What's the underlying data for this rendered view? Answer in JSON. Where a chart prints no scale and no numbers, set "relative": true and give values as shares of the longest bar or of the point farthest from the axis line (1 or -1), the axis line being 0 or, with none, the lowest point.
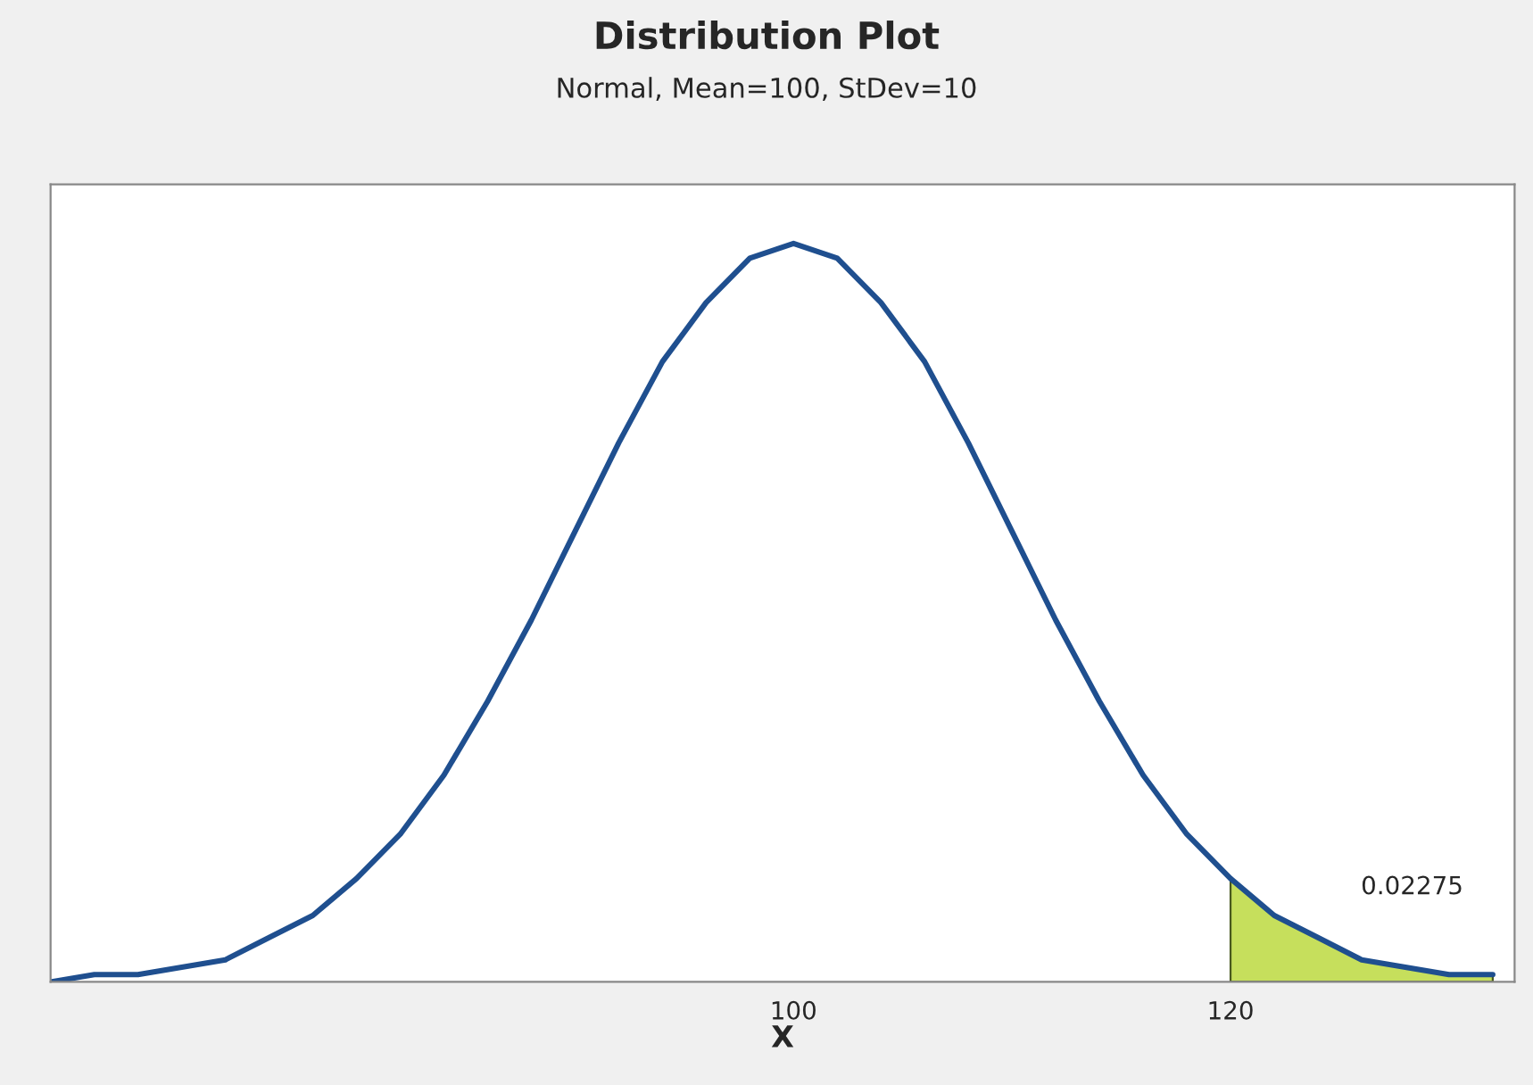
{
  "chart_data": {
    "type": "line",
    "title": "Distribution Plot",
    "subtitle": "Normal, Mean=100, StDev=10",
    "xlabel": "X",
    "relative": true,
    "xlim": [
      66,
      133
    ],
    "xticks": [
      100,
      120
    ],
    "grid": false,
    "legend": false,
    "series": [
      {
        "color": "#1f4f8f",
        "x": [
          66,
          68,
          70,
          72,
          74,
          76,
          78,
          80,
          82,
          84,
          86,
          88,
          90,
          92,
          94,
          96,
          98,
          100,
          102,
          104,
          106,
          108,
          110,
          112,
          114,
          116,
          118,
          120,
          122,
          124,
          126,
          128,
          130,
          132
        ],
        "values": [
          0.0,
          0.01,
          0.01,
          0.02,
          0.03,
          0.06,
          0.09,
          0.14,
          0.2,
          0.28,
          0.38,
          0.49,
          0.61,
          0.73,
          0.84,
          0.92,
          0.98,
          1.0,
          0.98,
          0.92,
          0.84,
          0.73,
          0.61,
          0.49,
          0.38,
          0.28,
          0.2,
          0.14,
          0.09,
          0.06,
          0.03,
          0.02,
          0.01,
          0.01
        ]
      },
      {
        "type": "area",
        "color": "#c6df5c",
        "x": [
          120,
          122,
          124,
          126,
          128,
          130,
          132
        ],
        "values": [
          0.14,
          0.09,
          0.06,
          0.03,
          0.02,
          0.01,
          0.01
        ]
      }
    ],
    "annotations": [
      "0.02275"
    ]
  }
}
